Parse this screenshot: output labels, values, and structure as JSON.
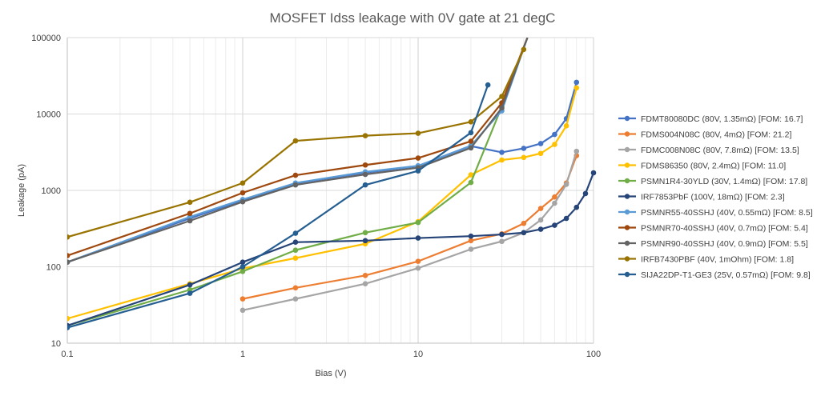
{
  "chart_data": {
    "type": "line",
    "title": "MOSFET Idss leakage with 0V gate at 21 degC",
    "xlabel": "Bias (V)",
    "ylabel": "Leakage (pA)",
    "xscale": "log",
    "yscale": "log",
    "xlim": [
      0.1,
      100
    ],
    "ylim": [
      10,
      100000
    ],
    "xticks": [
      "0.1",
      "1",
      "10",
      "100"
    ],
    "yticks": [
      "10",
      "100",
      "1000",
      "10000",
      "100000"
    ],
    "grid": true,
    "legend_position": "right",
    "series": [
      {
        "name": "FDMT80080DC (80V, 1.35mΩ) [FOM: 16.7]",
        "color": "#4472C4",
        "points": [
          [
            0.1,
            115
          ],
          [
            0.5,
            430
          ],
          [
            1,
            740
          ],
          [
            2,
            1240
          ],
          [
            5,
            1710
          ],
          [
            10,
            2080
          ],
          [
            20,
            3800
          ],
          [
            30,
            3150
          ],
          [
            40,
            3550
          ],
          [
            50,
            4100
          ],
          [
            60,
            5400
          ],
          [
            70,
            8700
          ],
          [
            80,
            26000
          ]
        ]
      },
      {
        "name": "FDMS004N08C (80V, 4mΩ) [FOM: 21.2]",
        "color": "#ED7D31",
        "points": [
          [
            1,
            38
          ],
          [
            2,
            53
          ],
          [
            5,
            77
          ],
          [
            10,
            118
          ],
          [
            20,
            220
          ],
          [
            30,
            270
          ],
          [
            40,
            370
          ],
          [
            50,
            580
          ],
          [
            60,
            820
          ],
          [
            70,
            1250
          ],
          [
            80,
            2850
          ]
        ]
      },
      {
        "name": "FDMC008N08C (80V, 7.8mΩ) [FOM: 13.5]",
        "color": "#A5A5A5",
        "points": [
          [
            1,
            27
          ],
          [
            2,
            38
          ],
          [
            5,
            60
          ],
          [
            10,
            96
          ],
          [
            20,
            170
          ],
          [
            30,
            215
          ],
          [
            40,
            280
          ],
          [
            50,
            410
          ],
          [
            60,
            680
          ],
          [
            70,
            1200
          ],
          [
            80,
            3250
          ]
        ]
      },
      {
        "name": "FDMS86350 (80V, 2.4mΩ) [FOM: 11.0]",
        "color": "#FFC000",
        "points": [
          [
            0.1,
            21
          ],
          [
            0.5,
            60
          ],
          [
            1,
            95
          ],
          [
            2,
            130
          ],
          [
            5,
            200
          ],
          [
            10,
            390
          ],
          [
            20,
            1600
          ],
          [
            30,
            2500
          ],
          [
            40,
            2700
          ],
          [
            50,
            3050
          ],
          [
            60,
            4000
          ],
          [
            70,
            7000
          ],
          [
            80,
            22000
          ]
        ]
      },
      {
        "name": "PSMN1R4-30YLD (30V, 1.4mΩ) [FOM: 17.8]",
        "color": "#70AD47",
        "points": [
          [
            0.1,
            17
          ],
          [
            0.5,
            50
          ],
          [
            1,
            87
          ],
          [
            2,
            165
          ],
          [
            5,
            280
          ],
          [
            10,
            380
          ],
          [
            20,
            1270
          ],
          [
            30,
            12500
          ]
        ]
      },
      {
        "name": "IRF7853PbF (100V, 18mΩ) [FOM: 2.3]",
        "color": "#264478",
        "points": [
          [
            0.1,
            17
          ],
          [
            0.5,
            58
          ],
          [
            1,
            115
          ],
          [
            2,
            210
          ],
          [
            5,
            220
          ],
          [
            10,
            238
          ],
          [
            20,
            252
          ],
          [
            30,
            265
          ],
          [
            40,
            280
          ],
          [
            50,
            310
          ],
          [
            60,
            350
          ],
          [
            70,
            430
          ],
          [
            80,
            600
          ],
          [
            90,
            910
          ],
          [
            100,
            1700
          ]
        ]
      },
      {
        "name": "PSMNR55-40SSHJ (40V, 0.55mΩ) [FOM: 8.5]",
        "color": "#5B9BD5",
        "points": [
          [
            0.1,
            115
          ],
          [
            0.5,
            450
          ],
          [
            1,
            760
          ],
          [
            2,
            1250
          ],
          [
            5,
            1750
          ],
          [
            10,
            2100
          ],
          [
            20,
            3850
          ],
          [
            30,
            11000
          ],
          [
            42,
            100000
          ]
        ]
      },
      {
        "name": "PSMNR70-40SSHJ (40V, 0.7mΩ) [FOM: 5.4]",
        "color": "#9E480E",
        "points": [
          [
            0.1,
            140
          ],
          [
            0.5,
            500
          ],
          [
            1,
            930
          ],
          [
            2,
            1580
          ],
          [
            5,
            2150
          ],
          [
            10,
            2650
          ],
          [
            20,
            4400
          ],
          [
            30,
            14000
          ],
          [
            42,
            100000
          ]
        ]
      },
      {
        "name": "PSMNR90-40SSHJ (40V, 0.9mΩ) [FOM: 5.5]",
        "color": "#636363",
        "points": [
          [
            0.1,
            115
          ],
          [
            0.5,
            400
          ],
          [
            1,
            710
          ],
          [
            2,
            1180
          ],
          [
            5,
            1620
          ],
          [
            10,
            1980
          ],
          [
            20,
            3600
          ],
          [
            30,
            12000
          ],
          [
            42,
            100000
          ]
        ]
      },
      {
        "name": "IRFB7430PBF (40V, 1mOhm) [FOM: 1.8]",
        "color": "#997300",
        "points": [
          [
            0.1,
            245
          ],
          [
            0.5,
            700
          ],
          [
            1,
            1250
          ],
          [
            2,
            4450
          ],
          [
            5,
            5200
          ],
          [
            10,
            5600
          ],
          [
            20,
            7900
          ],
          [
            30,
            17000
          ],
          [
            40,
            70000
          ]
        ]
      },
      {
        "name": "SIJA22DP-T1-GE3 (25V, 0.57mΩ) [FOM: 9.8]",
        "color": "#255E91",
        "points": [
          [
            0.1,
            16
          ],
          [
            0.5,
            45
          ],
          [
            1,
            100
          ],
          [
            2,
            275
          ],
          [
            5,
            1180
          ],
          [
            10,
            1800
          ],
          [
            20,
            5700
          ],
          [
            25,
            24000
          ]
        ]
      }
    ]
  }
}
